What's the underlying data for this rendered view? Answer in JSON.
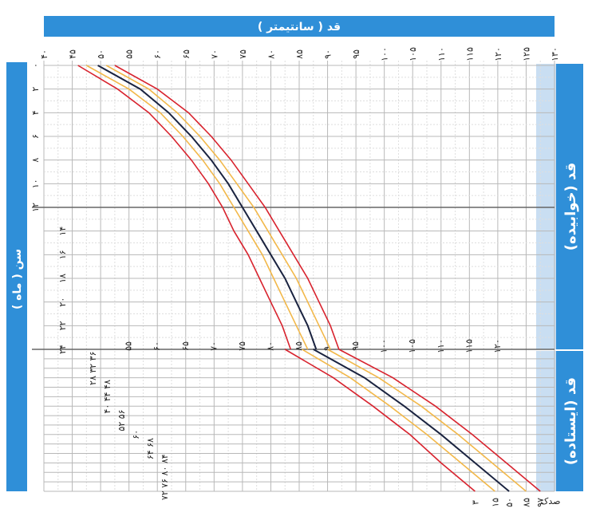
{
  "header": {
    "top_caption": "",
    "top_axis_label": "قد ( سانتیمتر )",
    "left_axis_label": "سن ( ماه )",
    "right_label_lying": "قد (خوابیده)",
    "right_label_standing": "قد (ایستاده)",
    "right_corner_label": "صدک"
  },
  "colors": {
    "band_blue": "#2f8fd8",
    "panel_light": "#c9def2",
    "median_line": "#1a2340",
    "outer_lines": "#d8232e",
    "inner_lines": "#f2b84a",
    "grid": "#b8b8b8"
  },
  "chart_data": {
    "type": "line",
    "title": "",
    "xlabel": "قد ( سانتیمتر )",
    "ylabel": "سن ( ماه )",
    "x_ticks": [
      "۴۰",
      "۴۵",
      "۵۰",
      "۵۵",
      "۶۰",
      "۶۵",
      "۷۰",
      "۷۵",
      "۸۰",
      "۸۵",
      "۹۰",
      "۹۵",
      "۱۰۰",
      "۱۰۵",
      "۱۱۰",
      "۱۱۵",
      "۱۲۰",
      "۱۲۵",
      "۱۳۰"
    ],
    "y_ticks": [
      "۰",
      "۲",
      "۴",
      "۶",
      "۸",
      "۱۰",
      "۱۲",
      "۱۴",
      "۱۶",
      "۱۸",
      "۲۰",
      "۲۲",
      "۲۴"
    ],
    "inner_x_ticks": [
      "۵۵",
      "۶۰",
      "۶۵",
      "۷۰",
      "۷۵",
      "۸۰",
      "۸۵",
      "۹۰",
      "۹۵",
      "۱۰۰",
      "۱۰۵",
      "۱۱۰",
      "۱۱۵",
      "۱۲۰"
    ],
    "lower_age_labels": [
      "۲۸ ۳۲ ۳۶",
      "۴۰ ۴۴ ۴۸",
      "۵۲ ۵۶",
      "۶۰",
      "۶۴ ۶۸",
      "۷۲ ۷۶ ۸۰ ۸۴"
    ],
    "percentile_labels": [
      "۳",
      "۱۵",
      "۵۰",
      "۸۵",
      "۹۷"
    ],
    "series": [
      {
        "name": "۳",
        "color": "#d8232e",
        "lying": [
          [
            0,
            46
          ],
          [
            2,
            53
          ],
          [
            4,
            58.5
          ],
          [
            6,
            62.5
          ],
          [
            8,
            66
          ],
          [
            10,
            69
          ],
          [
            12,
            71.5
          ],
          [
            14,
            73.5
          ],
          [
            16,
            76
          ],
          [
            18,
            78
          ],
          [
            20,
            80
          ],
          [
            22,
            82
          ],
          [
            24,
            83.5
          ]
        ],
        "standing": [
          [
            24,
            82.5
          ],
          [
            36,
            91
          ],
          [
            48,
            98
          ],
          [
            60,
            104.5
          ],
          [
            72,
            110
          ],
          [
            84,
            116
          ]
        ]
      },
      {
        "name": "۱۵",
        "color": "#f2b84a",
        "lying": [
          [
            0,
            47.5
          ],
          [
            2,
            55
          ],
          [
            4,
            60.5
          ],
          [
            6,
            64.5
          ],
          [
            8,
            68
          ],
          [
            10,
            71
          ],
          [
            12,
            73.5
          ],
          [
            14,
            76
          ],
          [
            16,
            78.5
          ],
          [
            18,
            80.5
          ],
          [
            20,
            82.5
          ],
          [
            22,
            84.5
          ],
          [
            24,
            86.5
          ]
        ],
        "standing": [
          [
            24,
            85.5
          ],
          [
            36,
            94
          ],
          [
            48,
            101
          ],
          [
            60,
            107.5
          ],
          [
            72,
            113.5
          ],
          [
            84,
            119.5
          ]
        ]
      },
      {
        "name": "۵۰",
        "color": "#1a2340",
        "lying": [
          [
            0,
            49.5
          ],
          [
            2,
            57
          ],
          [
            4,
            62
          ],
          [
            6,
            66
          ],
          [
            8,
            69.5
          ],
          [
            10,
            72.5
          ],
          [
            12,
            75
          ],
          [
            14,
            77.5
          ],
          [
            16,
            80
          ],
          [
            18,
            82.5
          ],
          [
            20,
            84.5
          ],
          [
            22,
            86.5
          ],
          [
            24,
            88
          ]
        ],
        "standing": [
          [
            24,
            87.5
          ],
          [
            36,
            96.5
          ],
          [
            48,
            103.5
          ],
          [
            60,
            110
          ],
          [
            72,
            116
          ],
          [
            84,
            122
          ]
        ]
      },
      {
        "name": "۸۵",
        "color": "#f2b84a",
        "lying": [
          [
            0,
            51
          ],
          [
            2,
            58.5
          ],
          [
            4,
            63.5
          ],
          [
            6,
            67.5
          ],
          [
            8,
            71
          ],
          [
            10,
            74
          ],
          [
            12,
            77
          ],
          [
            14,
            79.5
          ],
          [
            16,
            82
          ],
          [
            18,
            84.5
          ],
          [
            20,
            86.5
          ],
          [
            22,
            88.5
          ],
          [
            24,
            90.5
          ]
        ],
        "standing": [
          [
            24,
            90
          ],
          [
            36,
            99
          ],
          [
            48,
            106.5
          ],
          [
            60,
            113
          ],
          [
            72,
            119
          ],
          [
            84,
            125
          ]
        ]
      },
      {
        "name": "۹۷",
        "color": "#d8232e",
        "lying": [
          [
            0,
            52.5
          ],
          [
            2,
            60
          ],
          [
            4,
            65.5
          ],
          [
            6,
            69.5
          ],
          [
            8,
            73
          ],
          [
            10,
            76
          ],
          [
            12,
            79
          ],
          [
            14,
            81.5
          ],
          [
            16,
            84
          ],
          [
            18,
            86.5
          ],
          [
            20,
            88.5
          ],
          [
            22,
            90.5
          ],
          [
            24,
            92
          ]
        ],
        "standing": [
          [
            24,
            92
          ],
          [
            36,
            101.5
          ],
          [
            48,
            109
          ],
          [
            60,
            115.5
          ],
          [
            72,
            121.5
          ],
          [
            84,
            127.5
          ]
        ]
      }
    ],
    "xlim": [
      40,
      130
    ],
    "ylim_lying": [
      0,
      24
    ],
    "ylim_standing": [
      24,
      84
    ],
    "grid": true,
    "legend": "bottom"
  }
}
